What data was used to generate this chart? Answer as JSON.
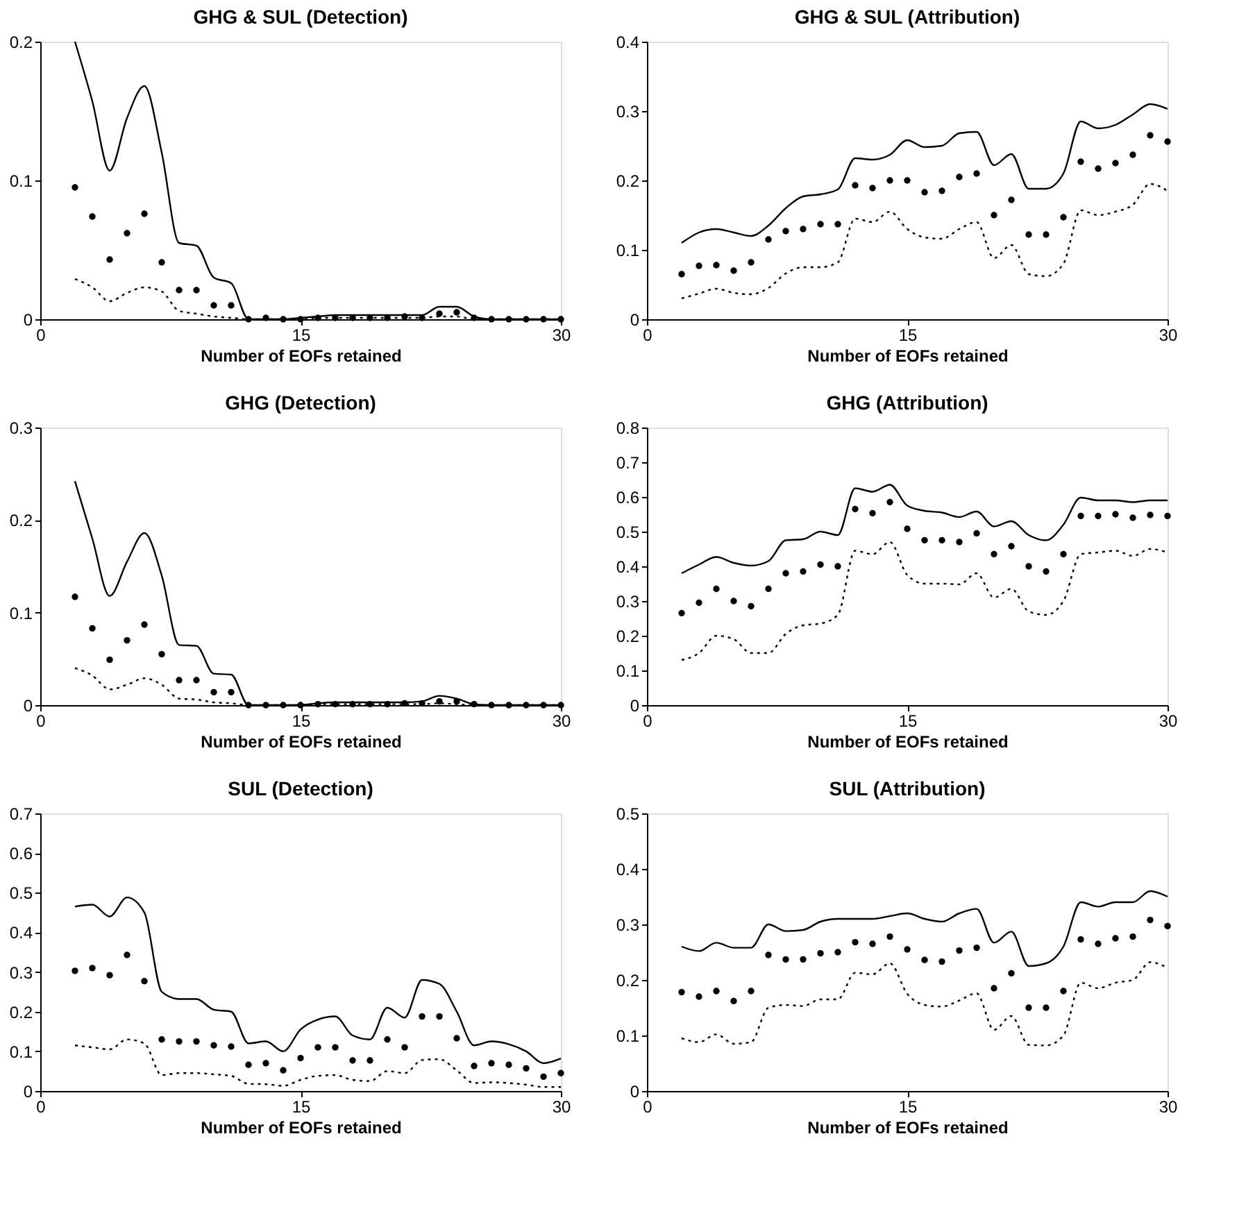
{
  "chart_data": [
    {
      "type": "line",
      "title": "GHG & SUL (Detection)",
      "xlabel": "Number of EOFs retained",
      "x": [
        2,
        3,
        4,
        5,
        6,
        7,
        8,
        9,
        10,
        11,
        12,
        13,
        14,
        15,
        16,
        17,
        18,
        19,
        20,
        21,
        22,
        23,
        24,
        25,
        26,
        27,
        28,
        29,
        30
      ],
      "xlim": [
        0,
        30
      ],
      "xticks": [
        0,
        15,
        30
      ],
      "ylim": [
        0,
        0.2
      ],
      "yticks": [
        0,
        0.1,
        0.2
      ],
      "grid": false,
      "series": [
        {
          "type": "line",
          "line_style": "solid",
          "color": "#000000",
          "values": [
            0.2,
            0.157,
            0.107,
            0.145,
            0.168,
            0.12,
            0.055,
            0.053,
            0.03,
            0.026,
            0,
            0,
            0,
            0.001,
            0.002,
            0.003,
            0.003,
            0.003,
            0.003,
            0.003,
            0.003,
            0.009,
            0.009,
            0.002,
            0,
            0,
            0,
            0,
            0
          ]
        },
        {
          "type": "scatter",
          "marker": "circle",
          "color": "#000000",
          "values": [
            0.095,
            0.074,
            0.043,
            0.062,
            0.076,
            0.041,
            0.021,
            0.021,
            0.01,
            0.01,
            0,
            0.001,
            0,
            0,
            0.001,
            0.001,
            0.001,
            0.001,
            0.001,
            0.002,
            0.001,
            0.004,
            0.005,
            0.001,
            0,
            0,
            0,
            0,
            0
          ]
        },
        {
          "type": "line",
          "line_style": "dotted",
          "color": "#000000",
          "values": [
            0.029,
            0.023,
            0.013,
            0.019,
            0.023,
            0.02,
            0.006,
            0.004,
            0.002,
            0.001,
            0,
            0,
            0,
            0,
            0.001,
            0.001,
            0.001,
            0.001,
            0.001,
            0.001,
            0.001,
            0.002,
            0.002,
            0,
            0,
            0,
            0,
            0,
            0
          ]
        }
      ]
    },
    {
      "type": "line",
      "title": "GHG & SUL (Attribution)",
      "xlabel": "Number of EOFs retained",
      "x": [
        2,
        3,
        4,
        5,
        6,
        7,
        8,
        9,
        10,
        11,
        12,
        13,
        14,
        15,
        16,
        17,
        18,
        19,
        20,
        21,
        22,
        23,
        24,
        25,
        26,
        27,
        28,
        29,
        30
      ],
      "xlim": [
        0,
        30
      ],
      "xticks": [
        0,
        15,
        30
      ],
      "ylim": [
        0,
        0.4
      ],
      "yticks": [
        0,
        0.1,
        0.2,
        0.3,
        0.4
      ],
      "grid": false,
      "series": [
        {
          "type": "line",
          "line_style": "solid",
          "color": "#000000",
          "values": [
            0.11,
            0.125,
            0.13,
            0.125,
            0.12,
            0.135,
            0.16,
            0.177,
            0.18,
            0.187,
            0.232,
            0.23,
            0.237,
            0.258,
            0.248,
            0.25,
            0.268,
            0.27,
            0.222,
            0.238,
            0.188,
            0.188,
            0.21,
            0.285,
            0.275,
            0.28,
            0.295,
            0.31,
            0.303
          ]
        },
        {
          "type": "scatter",
          "marker": "circle",
          "color": "#000000",
          "values": [
            0.065,
            0.077,
            0.078,
            0.07,
            0.082,
            0.115,
            0.127,
            0.13,
            0.137,
            0.137,
            0.193,
            0.189,
            0.2,
            0.2,
            0.183,
            0.185,
            0.205,
            0.21,
            0.15,
            0.172,
            0.122,
            0.122,
            0.147,
            0.227,
            0.217,
            0.225,
            0.237,
            0.265,
            0.256
          ]
        },
        {
          "type": "line",
          "line_style": "dotted",
          "color": "#000000",
          "values": [
            0.03,
            0.037,
            0.044,
            0.038,
            0.036,
            0.045,
            0.066,
            0.075,
            0.075,
            0.082,
            0.145,
            0.14,
            0.155,
            0.13,
            0.118,
            0.116,
            0.13,
            0.14,
            0.088,
            0.107,
            0.065,
            0.062,
            0.08,
            0.157,
            0.15,
            0.155,
            0.165,
            0.195,
            0.185
          ]
        }
      ]
    },
    {
      "type": "line",
      "title": "GHG (Detection)",
      "xlabel": "Number of EOFs retained",
      "x": [
        2,
        3,
        4,
        5,
        6,
        7,
        8,
        9,
        10,
        11,
        12,
        13,
        14,
        15,
        16,
        17,
        18,
        19,
        20,
        21,
        22,
        23,
        24,
        25,
        26,
        27,
        28,
        29,
        30
      ],
      "xlim": [
        0,
        30
      ],
      "xticks": [
        0,
        15,
        30
      ],
      "ylim": [
        0,
        0.3
      ],
      "yticks": [
        0,
        0.1,
        0.2,
        0.3
      ],
      "grid": false,
      "series": [
        {
          "type": "line",
          "line_style": "solid",
          "color": "#000000",
          "values": [
            0.242,
            0.18,
            0.118,
            0.155,
            0.186,
            0.14,
            0.065,
            0.064,
            0.034,
            0.033,
            0,
            0,
            0,
            0,
            0.002,
            0.003,
            0.003,
            0.003,
            0.003,
            0.003,
            0.004,
            0.01,
            0.007,
            0.001,
            0,
            0,
            0,
            0,
            0
          ]
        },
        {
          "type": "scatter",
          "marker": "circle",
          "color": "#000000",
          "values": [
            0.117,
            0.083,
            0.049,
            0.07,
            0.087,
            0.055,
            0.027,
            0.027,
            0.014,
            0.014,
            0,
            0,
            0,
            0,
            0.001,
            0.001,
            0.001,
            0.001,
            0.001,
            0.002,
            0.002,
            0.004,
            0.004,
            0.001,
            0,
            0,
            0,
            0,
            0
          ]
        },
        {
          "type": "line",
          "line_style": "dotted",
          "color": "#000000",
          "values": [
            0.04,
            0.032,
            0.017,
            0.022,
            0.029,
            0.022,
            0.007,
            0.006,
            0.003,
            0.002,
            0,
            0,
            0,
            0,
            0.001,
            0.001,
            0.001,
            0.001,
            0.001,
            0.001,
            0.001,
            0.002,
            0.001,
            0,
            0,
            0,
            0,
            0,
            0
          ]
        }
      ]
    },
    {
      "type": "line",
      "title": "GHG (Attribution)",
      "xlabel": "Number of EOFs retained",
      "x": [
        2,
        3,
        4,
        5,
        6,
        7,
        8,
        9,
        10,
        11,
        12,
        13,
        14,
        15,
        16,
        17,
        18,
        19,
        20,
        21,
        22,
        23,
        24,
        25,
        26,
        27,
        28,
        29,
        30
      ],
      "xlim": [
        0,
        30
      ],
      "xticks": [
        0,
        15,
        30
      ],
      "ylim": [
        0,
        0.8
      ],
      "yticks": [
        0,
        0.1,
        0.2,
        0.3,
        0.4,
        0.5,
        0.6,
        0.7,
        0.8
      ],
      "grid": false,
      "series": [
        {
          "type": "line",
          "line_style": "solid",
          "color": "#000000",
          "values": [
            0.38,
            0.405,
            0.427,
            0.41,
            0.402,
            0.415,
            0.475,
            0.478,
            0.5,
            0.49,
            0.625,
            0.615,
            0.635,
            0.575,
            0.56,
            0.555,
            0.542,
            0.558,
            0.515,
            0.53,
            0.49,
            0.475,
            0.52,
            0.598,
            0.59,
            0.59,
            0.585,
            0.59,
            0.59
          ]
        },
        {
          "type": "scatter",
          "marker": "circle",
          "color": "#000000",
          "values": [
            0.265,
            0.295,
            0.335,
            0.3,
            0.285,
            0.335,
            0.38,
            0.385,
            0.405,
            0.4,
            0.565,
            0.553,
            0.585,
            0.508,
            0.475,
            0.475,
            0.47,
            0.495,
            0.435,
            0.458,
            0.4,
            0.385,
            0.435,
            0.545,
            0.545,
            0.55,
            0.54,
            0.548,
            0.545
          ]
        },
        {
          "type": "line",
          "line_style": "dotted",
          "color": "#000000",
          "values": [
            0.13,
            0.15,
            0.2,
            0.19,
            0.15,
            0.15,
            0.205,
            0.23,
            0.235,
            0.26,
            0.445,
            0.435,
            0.47,
            0.375,
            0.35,
            0.35,
            0.348,
            0.38,
            0.31,
            0.335,
            0.27,
            0.26,
            0.3,
            0.435,
            0.44,
            0.445,
            0.43,
            0.45,
            0.44
          ]
        }
      ]
    },
    {
      "type": "line",
      "title": "SUL (Detection)",
      "xlabel": "Number of EOFs retained",
      "x": [
        2,
        3,
        4,
        5,
        6,
        7,
        8,
        9,
        10,
        11,
        12,
        13,
        14,
        15,
        16,
        17,
        18,
        19,
        20,
        21,
        22,
        23,
        24,
        25,
        26,
        27,
        28,
        29,
        30
      ],
      "xlim": [
        0,
        30
      ],
      "xticks": [
        0,
        15,
        30
      ],
      "ylim": [
        0,
        0.7
      ],
      "yticks": [
        0,
        0.1,
        0.2,
        0.3,
        0.4,
        0.5,
        0.6,
        0.7
      ],
      "grid": false,
      "series": [
        {
          "type": "line",
          "line_style": "solid",
          "color": "#000000",
          "values": [
            0.465,
            0.47,
            0.44,
            0.488,
            0.45,
            0.25,
            0.232,
            0.232,
            0.205,
            0.2,
            0.12,
            0.125,
            0.1,
            0.155,
            0.18,
            0.188,
            0.14,
            0.13,
            0.21,
            0.185,
            0.28,
            0.27,
            0.2,
            0.115,
            0.125,
            0.118,
            0.1,
            0.07,
            0.082
          ]
        },
        {
          "type": "scatter",
          "marker": "circle",
          "color": "#000000",
          "values": [
            0.303,
            0.31,
            0.292,
            0.343,
            0.277,
            0.13,
            0.125,
            0.125,
            0.115,
            0.112,
            0.066,
            0.07,
            0.052,
            0.083,
            0.11,
            0.11,
            0.077,
            0.077,
            0.13,
            0.11,
            0.188,
            0.188,
            0.133,
            0.063,
            0.07,
            0.066,
            0.057,
            0.036,
            0.045
          ]
        },
        {
          "type": "line",
          "line_style": "dotted",
          "color": "#000000",
          "values": [
            0.115,
            0.11,
            0.105,
            0.13,
            0.12,
            0.04,
            0.045,
            0.045,
            0.042,
            0.038,
            0.018,
            0.017,
            0.013,
            0.028,
            0.038,
            0.04,
            0.028,
            0.025,
            0.05,
            0.045,
            0.078,
            0.08,
            0.052,
            0.02,
            0.022,
            0.02,
            0.016,
            0.01,
            0.01
          ]
        }
      ]
    },
    {
      "type": "line",
      "title": "SUL (Attribution)",
      "xlabel": "Number of EOFs retained",
      "x": [
        2,
        3,
        4,
        5,
        6,
        7,
        8,
        9,
        10,
        11,
        12,
        13,
        14,
        15,
        16,
        17,
        18,
        19,
        20,
        21,
        22,
        23,
        24,
        25,
        26,
        27,
        28,
        29,
        30
      ],
      "xlim": [
        0,
        30
      ],
      "xticks": [
        0,
        15,
        30
      ],
      "ylim": [
        0,
        0.5
      ],
      "yticks": [
        0,
        0.1,
        0.2,
        0.3,
        0.4,
        0.5
      ],
      "grid": false,
      "series": [
        {
          "type": "line",
          "line_style": "solid",
          "color": "#000000",
          "values": [
            0.26,
            0.252,
            0.267,
            0.258,
            0.258,
            0.3,
            0.288,
            0.29,
            0.305,
            0.31,
            0.31,
            0.31,
            0.315,
            0.32,
            0.31,
            0.305,
            0.32,
            0.328,
            0.267,
            0.287,
            0.225,
            0.23,
            0.26,
            0.34,
            0.332,
            0.34,
            0.34,
            0.36,
            0.35
          ]
        },
        {
          "type": "scatter",
          "marker": "circle",
          "color": "#000000",
          "values": [
            0.178,
            0.17,
            0.18,
            0.162,
            0.18,
            0.245,
            0.237,
            0.237,
            0.248,
            0.25,
            0.268,
            0.265,
            0.278,
            0.255,
            0.236,
            0.233,
            0.253,
            0.258,
            0.185,
            0.212,
            0.15,
            0.15,
            0.18,
            0.273,
            0.265,
            0.275,
            0.278,
            0.308,
            0.297
          ]
        },
        {
          "type": "line",
          "line_style": "dotted",
          "color": "#000000",
          "values": [
            0.095,
            0.088,
            0.102,
            0.085,
            0.088,
            0.15,
            0.155,
            0.153,
            0.165,
            0.165,
            0.213,
            0.21,
            0.23,
            0.175,
            0.155,
            0.152,
            0.163,
            0.176,
            0.11,
            0.135,
            0.083,
            0.082,
            0.1,
            0.195,
            0.185,
            0.195,
            0.2,
            0.232,
            0.222
          ]
        }
      ]
    }
  ]
}
